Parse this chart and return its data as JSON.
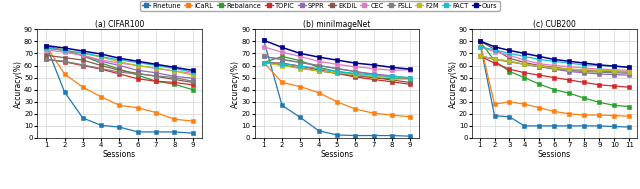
{
  "legend_labels": [
    "Finetune",
    "iCaRL",
    "Rebalance",
    "TOPIC",
    "SPPR",
    "EKDIL",
    "CEC",
    "FSLL",
    "F2M",
    "FACT",
    "Ours"
  ],
  "cifar100": {
    "sessions": [
      1,
      2,
      3,
      4,
      5,
      6,
      7,
      8,
      9
    ],
    "title": "(a) CIFAR100",
    "series": {
      "Finetune": [
        76.5,
        38.0,
        16.5,
        10.5,
        9.0,
        5.0,
        5.0,
        5.0,
        4.0
      ],
      "iCaRL": [
        76.0,
        53.0,
        42.0,
        34.0,
        27.0,
        25.0,
        21.0,
        15.5,
        14.0
      ],
      "Rebalance": [
        75.0,
        73.0,
        68.0,
        62.0,
        57.0,
        52.0,
        47.0,
        44.5,
        40.0
      ],
      "TOPIC": [
        65.0,
        63.0,
        60.0,
        57.0,
        53.0,
        49.0,
        47.0,
        46.0,
        44.0
      ],
      "SPPR": [
        76.5,
        72.0,
        68.5,
        63.5,
        60.0,
        56.0,
        54.0,
        51.0,
        49.5
      ],
      "EKDIL": [
        68.5,
        66.5,
        64.5,
        60.0,
        56.0,
        53.5,
        51.0,
        48.5,
        46.0
      ],
      "CEC": [
        73.0,
        71.0,
        68.5,
        64.5,
        62.0,
        60.0,
        57.5,
        55.5,
        53.5
      ],
      "FSLL": [
        65.0,
        63.5,
        60.5,
        57.5,
        54.5,
        53.0,
        51.5,
        50.0,
        47.0
      ],
      "F2M": [
        74.0,
        72.5,
        70.0,
        67.0,
        63.0,
        60.0,
        58.0,
        55.5,
        52.0
      ],
      "FACT": [
        74.5,
        72.5,
        70.5,
        67.5,
        64.5,
        62.5,
        60.0,
        57.5,
        54.5
      ],
      "Ours": [
        76.5,
        74.5,
        72.0,
        69.5,
        66.0,
        63.5,
        61.0,
        58.5,
        56.0
      ]
    }
  },
  "miniImageNet": {
    "sessions": [
      1,
      2,
      3,
      4,
      5,
      6,
      7,
      8,
      9
    ],
    "title": "(b) miniImageNet",
    "series": {
      "Finetune": [
        81.0,
        27.0,
        17.0,
        6.0,
        2.5,
        2.0,
        2.0,
        2.0,
        1.5
      ],
      "iCaRL": [
        62.5,
        46.0,
        42.5,
        37.5,
        30.0,
        24.0,
        20.5,
        19.0,
        17.5
      ],
      "Rebalance": [
        62.5,
        67.5,
        64.0,
        58.5,
        55.0,
        53.0,
        50.0,
        49.0,
        49.0
      ],
      "TOPIC": [
        62.5,
        62.0,
        59.5,
        56.5,
        53.5,
        50.5,
        48.5,
        46.5,
        44.5
      ],
      "SPPR": [
        67.5,
        65.0,
        62.5,
        60.0,
        57.5,
        55.0,
        53.0,
        51.5,
        49.5
      ],
      "EKDIL": [
        62.5,
        60.5,
        58.0,
        55.5,
        53.5,
        51.5,
        50.0,
        48.0,
        46.0
      ],
      "CEC": [
        75.5,
        71.0,
        67.5,
        63.5,
        61.0,
        59.0,
        57.5,
        56.0,
        56.5
      ],
      "FSLL": [
        67.5,
        65.0,
        62.5,
        60.0,
        57.5,
        55.0,
        52.5,
        50.5,
        49.0
      ],
      "F2M": [
        62.5,
        60.0,
        57.5,
        55.5,
        54.0,
        52.5,
        51.0,
        50.0,
        50.0
      ],
      "FACT": [
        62.5,
        61.5,
        59.5,
        57.5,
        55.0,
        53.5,
        52.0,
        51.0,
        50.0
      ],
      "Ours": [
        81.0,
        75.0,
        70.0,
        67.0,
        64.5,
        62.0,
        60.5,
        58.5,
        57.0
      ]
    }
  },
  "cub200": {
    "sessions": [
      1,
      2,
      3,
      4,
      5,
      6,
      7,
      8,
      9,
      10,
      11
    ],
    "title": "(c) CUB200",
    "series": {
      "Finetune": [
        80.5,
        18.5,
        17.5,
        10.0,
        10.0,
        10.0,
        10.0,
        10.0,
        10.0,
        9.5,
        9.0
      ],
      "iCaRL": [
        80.5,
        28.0,
        30.0,
        28.0,
        25.0,
        22.0,
        20.0,
        19.0,
        19.0,
        18.5,
        18.0
      ],
      "Rebalance": [
        80.5,
        64.0,
        55.0,
        50.0,
        44.5,
        40.0,
        37.0,
        33.0,
        29.5,
        27.0,
        26.0
      ],
      "TOPIC": [
        68.0,
        62.0,
        57.0,
        54.0,
        52.0,
        50.0,
        48.0,
        46.0,
        44.0,
        43.0,
        42.0
      ],
      "SPPR": [
        68.0,
        65.5,
        63.5,
        61.0,
        59.0,
        57.0,
        55.0,
        54.0,
        53.0,
        52.5,
        52.0
      ],
      "EKDIL": [
        80.5,
        73.5,
        66.0,
        62.5,
        60.0,
        58.5,
        57.0,
        56.0,
        55.5,
        55.0,
        54.5
      ],
      "CEC": [
        75.5,
        71.5,
        68.5,
        64.5,
        61.5,
        60.0,
        59.0,
        58.0,
        57.0,
        56.5,
        56.0
      ],
      "FSLL": [
        68.0,
        65.0,
        63.0,
        61.0,
        59.0,
        57.5,
        56.0,
        55.0,
        54.5,
        54.0,
        53.5
      ],
      "F2M": [
        68.0,
        65.5,
        63.5,
        61.0,
        59.5,
        58.0,
        57.0,
        56.5,
        56.0,
        55.5,
        55.0
      ],
      "FACT": [
        75.5,
        73.0,
        70.0,
        67.5,
        65.0,
        63.5,
        62.0,
        60.5,
        60.0,
        59.5,
        58.5
      ],
      "Ours": [
        80.5,
        75.5,
        72.5,
        70.0,
        67.5,
        65.0,
        63.5,
        62.0,
        60.5,
        59.5,
        58.5
      ]
    }
  },
  "series_styles": {
    "Finetune": {
      "color": "#1f77b4",
      "marker": "s",
      "ls": "-",
      "lw": 0.9,
      "ms": 2.5
    },
    "iCaRL": {
      "color": "#ff7f0e",
      "marker": "s",
      "ls": "-",
      "lw": 0.9,
      "ms": 2.5
    },
    "Rebalance": {
      "color": "#2ca02c",
      "marker": "s",
      "ls": "-",
      "lw": 0.9,
      "ms": 2.5
    },
    "TOPIC": {
      "color": "#d62728",
      "marker": "s",
      "ls": "-",
      "lw": 0.9,
      "ms": 2.5
    },
    "SPPR": {
      "color": "#9467bd",
      "marker": "s",
      "ls": "-",
      "lw": 0.9,
      "ms": 2.5
    },
    "EKDIL": {
      "color": "#8c564b",
      "marker": "s",
      "ls": "-",
      "lw": 0.9,
      "ms": 2.5
    },
    "CEC": {
      "color": "#e377c2",
      "marker": "s",
      "ls": "-",
      "lw": 0.9,
      "ms": 2.5
    },
    "FSLL": {
      "color": "#7f7f7f",
      "marker": "s",
      "ls": "-",
      "lw": 0.9,
      "ms": 2.5
    },
    "F2M": {
      "color": "#bcbd22",
      "marker": "s",
      "ls": "-",
      "lw": 0.9,
      "ms": 2.5
    },
    "FACT": {
      "color": "#17becf",
      "marker": "s",
      "ls": "-",
      "lw": 0.9,
      "ms": 2.5
    },
    "Ours": {
      "color": "#00008b",
      "marker": "s",
      "ls": "-",
      "lw": 1.1,
      "ms": 2.5
    }
  },
  "ylim": [
    0,
    90
  ],
  "yticks": [
    0,
    10,
    20,
    30,
    40,
    50,
    60,
    70,
    80,
    90
  ],
  "ylabel": "Accuracy(%)",
  "xlabel": "Sessions"
}
